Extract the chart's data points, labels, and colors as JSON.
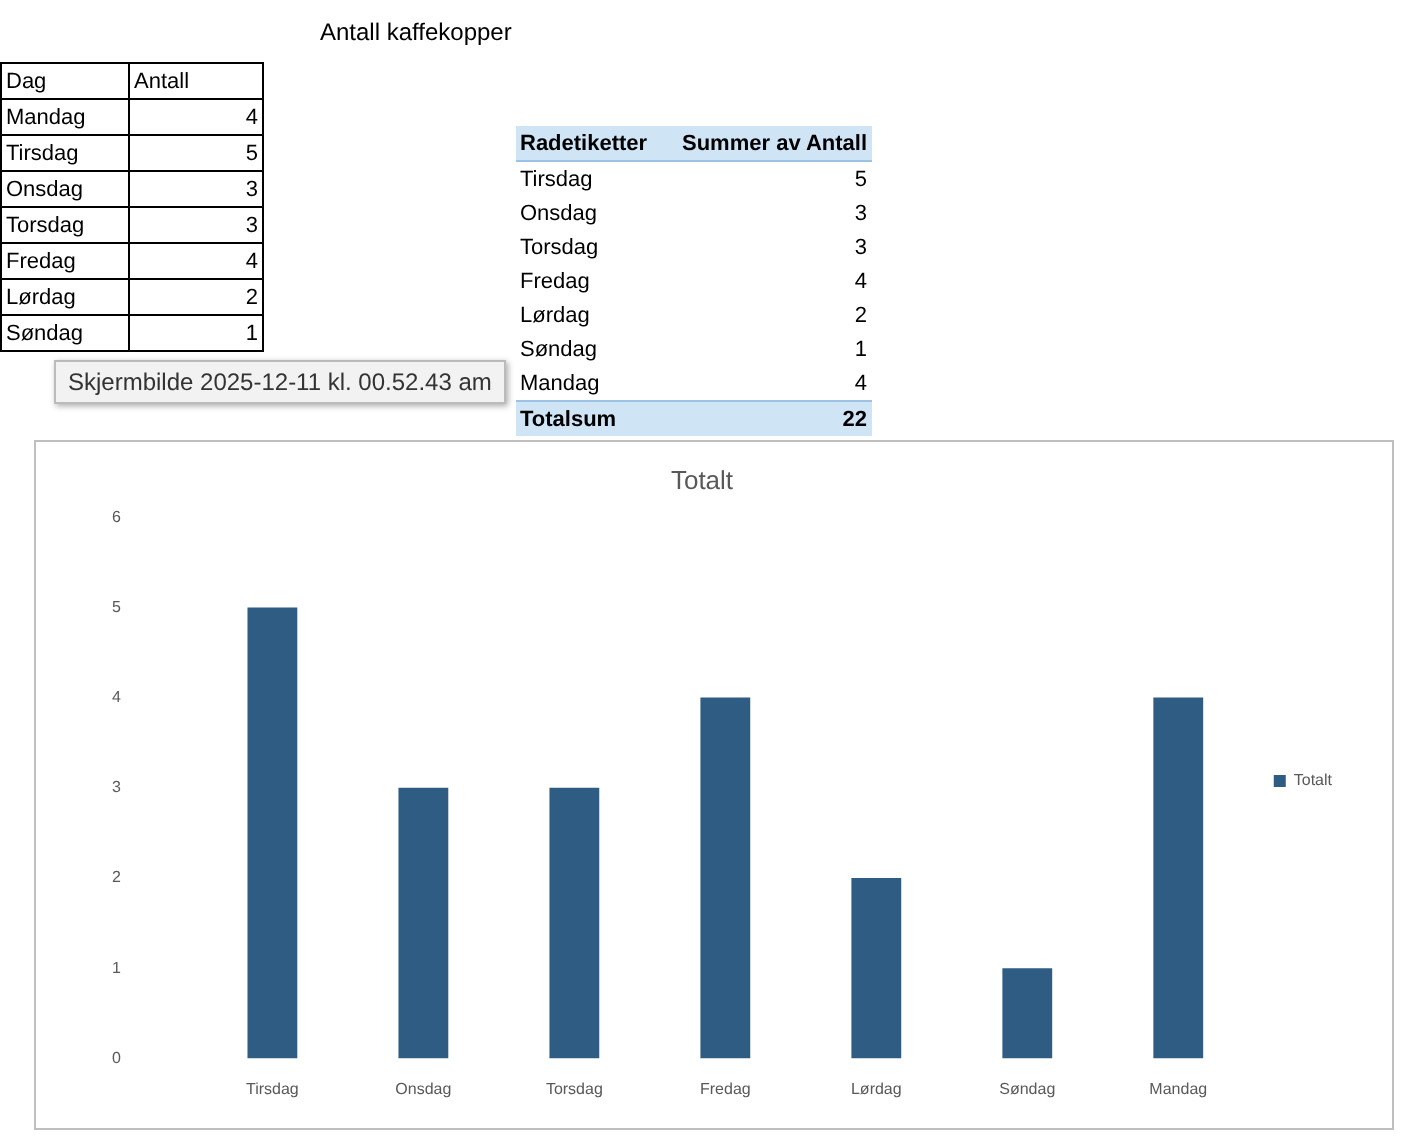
{
  "chart_data": [
    {
      "type": "other",
      "title": "Antall kaffekopper",
      "annotations": [
        "Dag",
        "Antall",
        "Mandag",
        "4",
        "Tirsdag",
        "5",
        "Onsdag",
        "3",
        "Torsdag",
        "3",
        "Fredag",
        "4",
        "Lørdag",
        "2",
        "Søndag",
        "1"
      ]
    },
    {
      "type": "other",
      "annotations": [
        "Radetiketter",
        "Summer av Antall",
        "Tirsdag",
        "5",
        "Onsdag",
        "3",
        "Torsdag",
        "3",
        "Fredag",
        "4",
        "Lørdag",
        "2",
        "Søndag",
        "1",
        "Mandag",
        "4",
        "Totalsum",
        "22"
      ]
    },
    {
      "type": "other",
      "annotations": [
        "Skjermbilde 2025-12-11 kl. 00.52.43 am"
      ]
    },
    {
      "type": "bar",
      "title": "Totalt",
      "categories": [
        "Tirsdag",
        "Onsdag",
        "Torsdag",
        "Fredag",
        "Lørdag",
        "Søndag",
        "Mandag"
      ],
      "series": [
        {
          "name": "Totalt",
          "color": "#2e5c82",
          "values": [
            5,
            3,
            3,
            4,
            2,
            1,
            4
          ]
        }
      ],
      "ylim": [
        0,
        6
      ],
      "yticks": [
        0,
        1,
        2,
        3,
        4,
        5,
        6
      ],
      "legend": "right"
    }
  ]
}
